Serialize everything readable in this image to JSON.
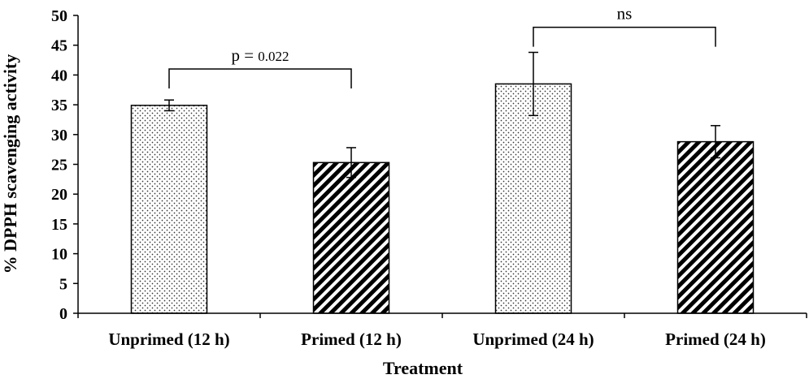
{
  "chart_data": {
    "type": "bar",
    "categories": [
      "Unprimed (12 h)",
      "Primed (12 h)",
      "Unprimed (24 h)",
      "Primed (24 h)"
    ],
    "values": [
      34.9,
      25.3,
      38.5,
      28.8
    ],
    "errors": [
      0.9,
      2.5,
      5.3,
      2.7
    ],
    "patterns": [
      "dots",
      "stripes",
      "dots",
      "stripes"
    ],
    "xlabel": "Treatment",
    "ylabel": "% DPPH scavenging activity",
    "ylim": [
      0,
      50
    ],
    "yticks": [
      "0",
      "5",
      "10",
      "15",
      "20",
      "25",
      "30",
      "35",
      "40",
      "45",
      "50"
    ],
    "grid": false,
    "annotations": [
      {
        "from": 0,
        "to": 1,
        "y": 41,
        "label_prefix": "p = ",
        "label_value": "0.022"
      },
      {
        "from": 2,
        "to": 3,
        "y": 48,
        "label_prefix": "ns",
        "label_value": ""
      }
    ]
  }
}
